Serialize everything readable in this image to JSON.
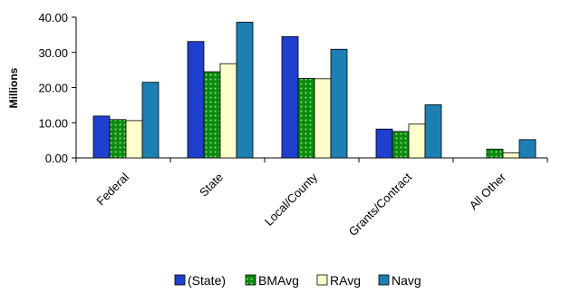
{
  "chart_data": {
    "type": "bar",
    "title": "",
    "xlabel": "",
    "ylabel": "Millions",
    "ylim": [
      0,
      40
    ],
    "yticks": [
      "0.00",
      "10.00",
      "20.00",
      "30.00",
      "40.00"
    ],
    "categories": [
      "Federal",
      "State",
      "Local/County",
      "Grants/Contract",
      "All Other"
    ],
    "series": [
      {
        "name": "(State)",
        "values": [
          11.9,
          33.1,
          34.5,
          8.2,
          0
        ]
      },
      {
        "name": "BMAvg",
        "values": [
          10.9,
          24.5,
          22.6,
          7.5,
          2.5
        ]
      },
      {
        "name": "RAvg",
        "values": [
          10.6,
          26.8,
          22.5,
          9.6,
          1.4
        ]
      },
      {
        "name": "Navg",
        "values": [
          21.5,
          38.6,
          30.9,
          15.1,
          5.2
        ]
      }
    ],
    "colors": {
      "(State)": "#1f3fcf",
      "BMAvg": "#0c9a0c",
      "RAvg": "#ffffcc",
      "Navg": "#1e7fb3"
    },
    "legend_position": "bottom",
    "grid": false
  }
}
